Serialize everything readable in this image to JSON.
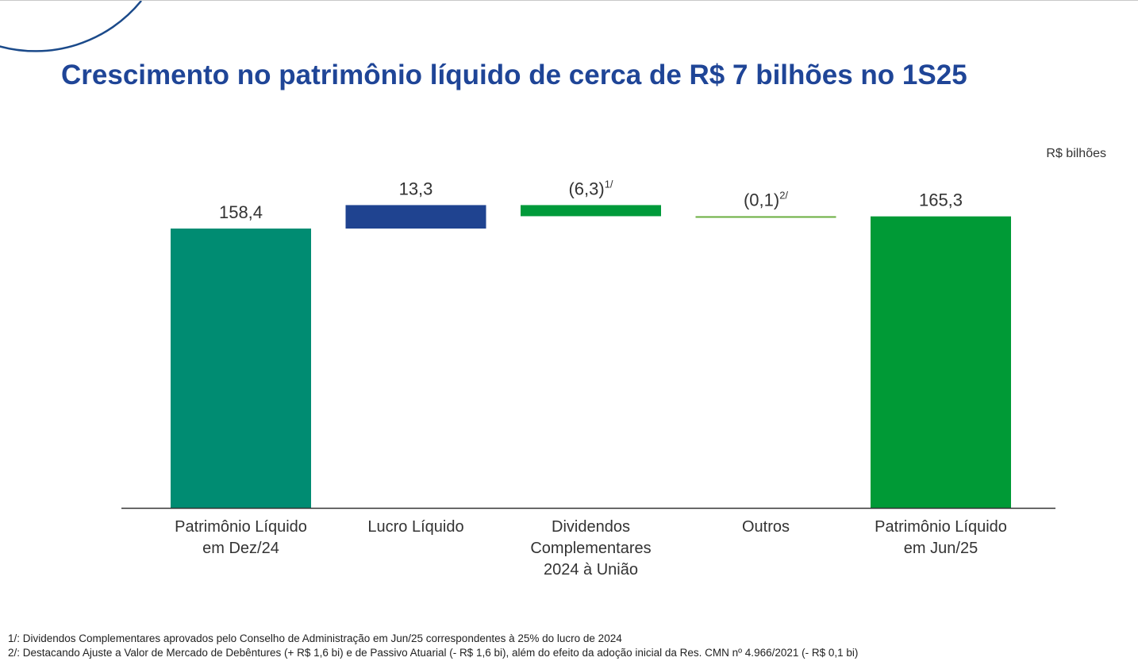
{
  "title": "Crescimento no patrimônio líquido de cerca de R$ 7 bilhões no 1S25",
  "unit_label": "R$ bilhões",
  "chart_data": {
    "type": "waterfall",
    "categories": [
      "Patrimônio Líquido em Dez/24",
      "Lucro Líquido",
      "Dividendos Complementares 2024 à União",
      "Outros",
      "Patrimônio Líquido em Jun/25"
    ],
    "category_lines": [
      [
        "Patrimônio Líquido",
        "em Dez/24"
      ],
      [
        "Lucro Líquido"
      ],
      [
        "Dividendos",
        "Complementares",
        "2024 à União"
      ],
      [
        "Outros"
      ],
      [
        "Patrimônio Líquido",
        "em Jun/25"
      ]
    ],
    "values": [
      158.4,
      13.3,
      -6.3,
      -0.1,
      165.3
    ],
    "kinds": [
      "total",
      "delta",
      "delta",
      "delta",
      "total"
    ],
    "data_labels": [
      "158,4",
      "13,3",
      "(6,3)",
      "(0,1)",
      "165,3"
    ],
    "label_notes": [
      "",
      "",
      "1/",
      "2/",
      ""
    ],
    "colors": [
      "#008C72",
      "#1F4390",
      "#009A3A",
      "#6AAE3F",
      "#009A36"
    ],
    "ylim": [
      0,
      170
    ],
    "grid": false
  },
  "footnotes": [
    "1/: Dividendos Complementares aprovados pelo Conselho de Administração em Jun/25 correspondentes à 25% do lucro de 2024",
    "2/: Destacando Ajuste a Valor de Mercado de Debêntures (+ R$ 1,6 bi) e de Passivo Atuarial (- R$ 1,6 bi), além do efeito da adoção inicial da Res. CMN nº 4.966/2021 (- R$ 0,1 bi)"
  ]
}
